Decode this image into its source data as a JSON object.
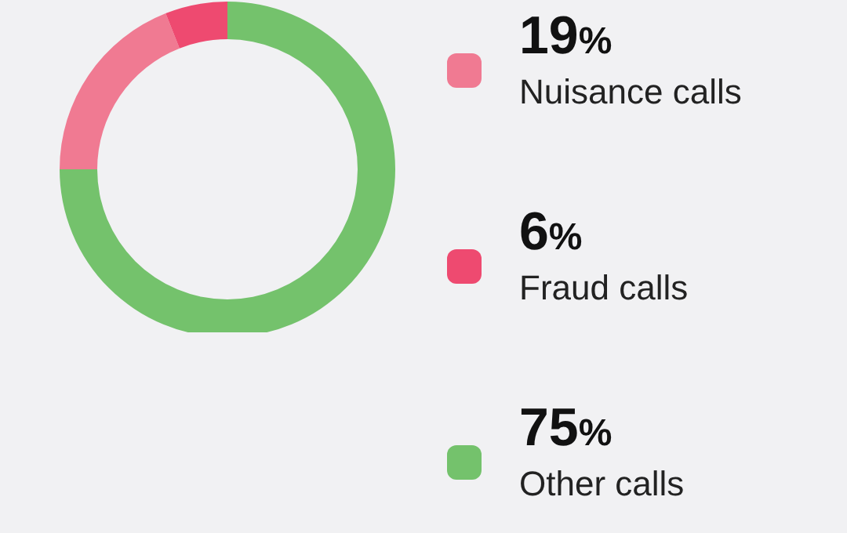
{
  "chart_data": {
    "type": "donut",
    "categories": [
      "Nuisance calls",
      "Fraud calls",
      "Other calls"
    ],
    "values": [
      19,
      6,
      75
    ],
    "colors": [
      "#f07a92",
      "#ee4a70",
      "#74c26c"
    ],
    "value_labels": [
      "19%",
      "6%",
      "75%"
    ],
    "legend": "right"
  }
}
